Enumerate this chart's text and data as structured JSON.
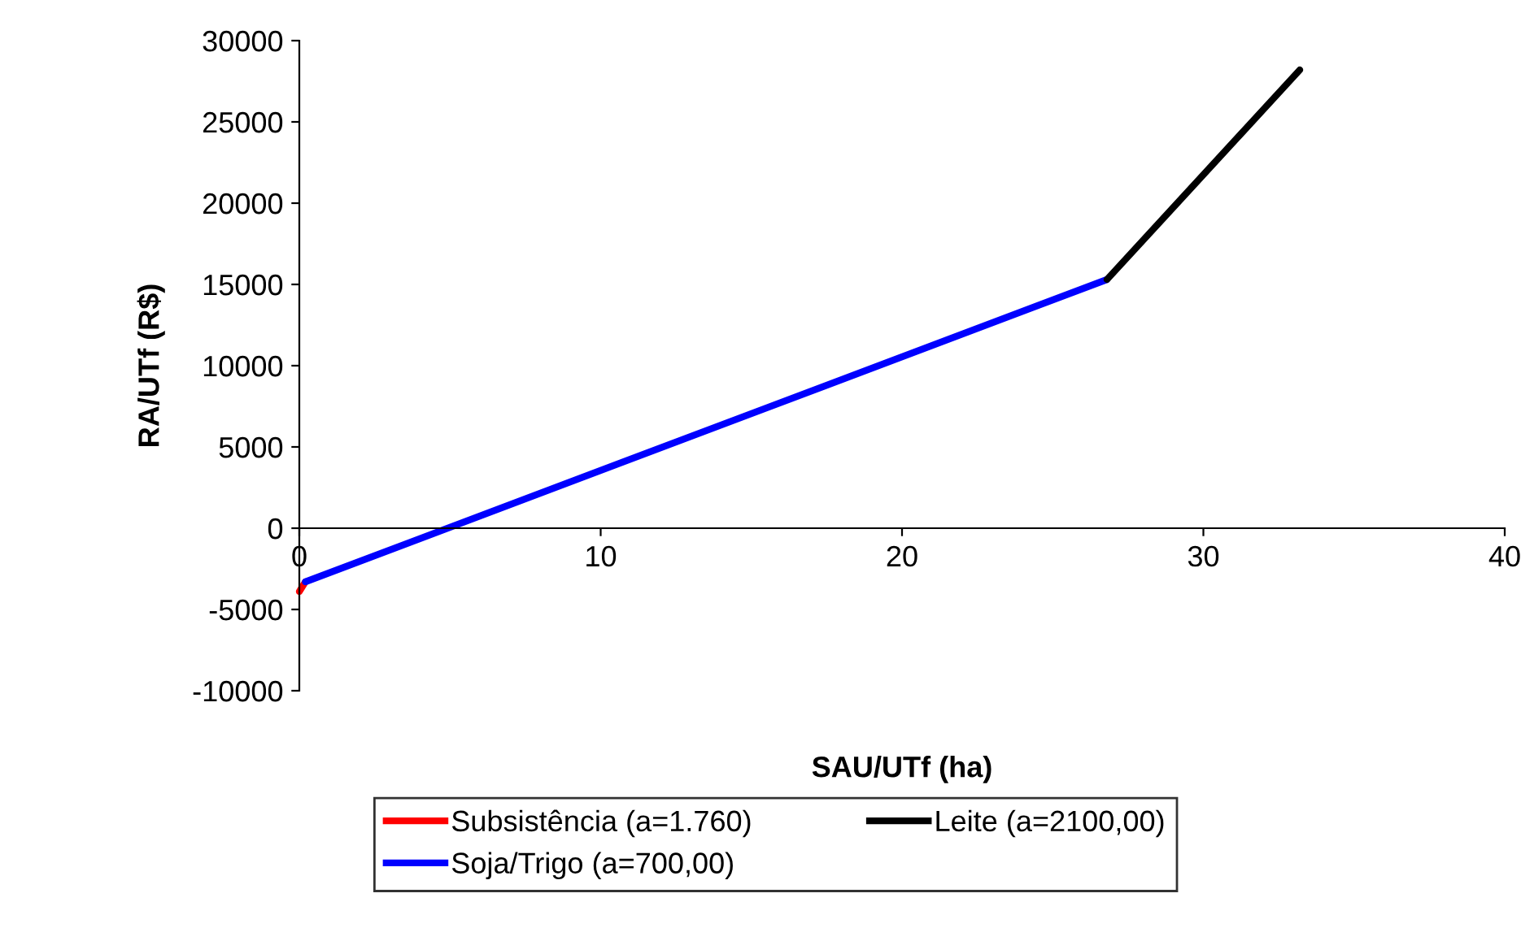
{
  "chart_data": {
    "type": "line",
    "xlabel": "SAU/UTf (ha)",
    "ylabel": "RA/UTf (R$)",
    "xlim": [
      0,
      40
    ],
    "xticks": [
      0,
      10,
      20,
      30,
      40
    ],
    "ylim": [
      -10000,
      30000
    ],
    "yticks": [
      -10000,
      -5000,
      0,
      5000,
      10000,
      15000,
      20000,
      25000,
      30000
    ],
    "grid": false,
    "legend": "bottom",
    "marker": "none",
    "line_style": "solid",
    "series": [
      {
        "name": "Subsistência (a=1.760)",
        "color": "#ff0000",
        "x": [
          0,
          0.2
        ],
        "values": [
          -3900,
          -3300
        ]
      },
      {
        "name": "Soja/Trigo (a=700,00)",
        "color": "#0000ff",
        "x": [
          0.2,
          26.8
        ],
        "values": [
          -3300,
          15300
        ]
      },
      {
        "name": "Leite (a=2100,00)",
        "color": "#000000",
        "x": [
          26.8,
          33.2
        ],
        "values": [
          15300,
          28200
        ]
      }
    ]
  }
}
